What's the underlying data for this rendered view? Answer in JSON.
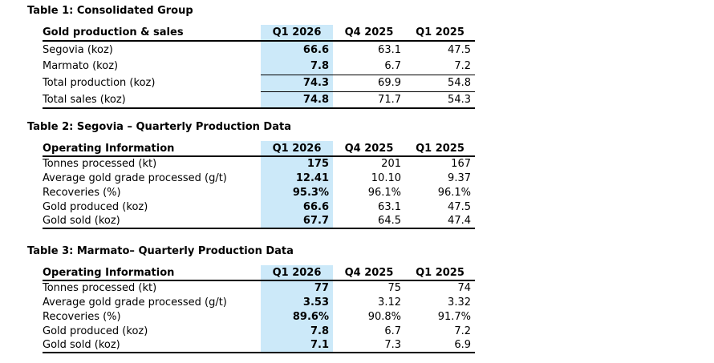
{
  "styles": {
    "highlight_color": "#cce9f9",
    "text_color": "#000000",
    "rule_color": "#000000",
    "background": "#ffffff"
  },
  "tables": [
    {
      "title": "Table 1: Consolidated Group",
      "header": {
        "label": "Gold production & sales",
        "columns": [
          "Q1 2026",
          "Q4 2025",
          "Q1 2025"
        ]
      },
      "rows": [
        {
          "label": "Segovia (koz)",
          "values": [
            "66.6",
            "63.1",
            "47.5"
          ]
        },
        {
          "label": "Marmato (koz)",
          "values": [
            "7.8",
            "6.7",
            "7.2"
          ]
        },
        {
          "label": "Total production (koz)",
          "values": [
            "74.3",
            "69.9",
            "54.8"
          ]
        },
        {
          "label": "Total sales (koz)",
          "values": [
            "74.8",
            "71.7",
            "54.3"
          ]
        }
      ]
    },
    {
      "title": "Table 2: Segovia – Quarterly Production Data",
      "header": {
        "label": "Operating Information",
        "columns": [
          "Q1 2026",
          "Q4 2025",
          "Q1 2025"
        ]
      },
      "rows": [
        {
          "label": "Tonnes processed (kt)",
          "values": [
            "175",
            "201",
            "167"
          ]
        },
        {
          "label": "Average gold grade processed (g/t)",
          "values": [
            "12.41",
            "10.10",
            "9.37"
          ]
        },
        {
          "label": "Recoveries (%)",
          "values": [
            "95.3%",
            "96.1%",
            "96.1%"
          ]
        },
        {
          "label": "Gold produced (koz)",
          "values": [
            "66.6",
            "63.1",
            "47.5"
          ]
        },
        {
          "label": "Gold sold (koz)",
          "values": [
            "67.7",
            "64.5",
            "47.4"
          ]
        }
      ]
    },
    {
      "title": "Table 3: Marmato– Quarterly Production Data",
      "header": {
        "label": "Operating Information",
        "columns": [
          "Q1 2026",
          "Q4 2025",
          "Q1 2025"
        ]
      },
      "rows": [
        {
          "label": "Tonnes processed (kt)",
          "values": [
            "77",
            "75",
            "74"
          ]
        },
        {
          "label": "Average gold grade processed (g/t)",
          "values": [
            "3.53",
            "3.12",
            "3.32"
          ]
        },
        {
          "label": "Recoveries (%)",
          "values": [
            "89.6%",
            "90.8%",
            "91.7%"
          ]
        },
        {
          "label": "Gold produced (koz)",
          "values": [
            "7.8",
            "6.7",
            "7.2"
          ]
        },
        {
          "label": "Gold sold (koz)",
          "values": [
            "7.1",
            "7.3",
            "6.9"
          ]
        }
      ]
    }
  ]
}
